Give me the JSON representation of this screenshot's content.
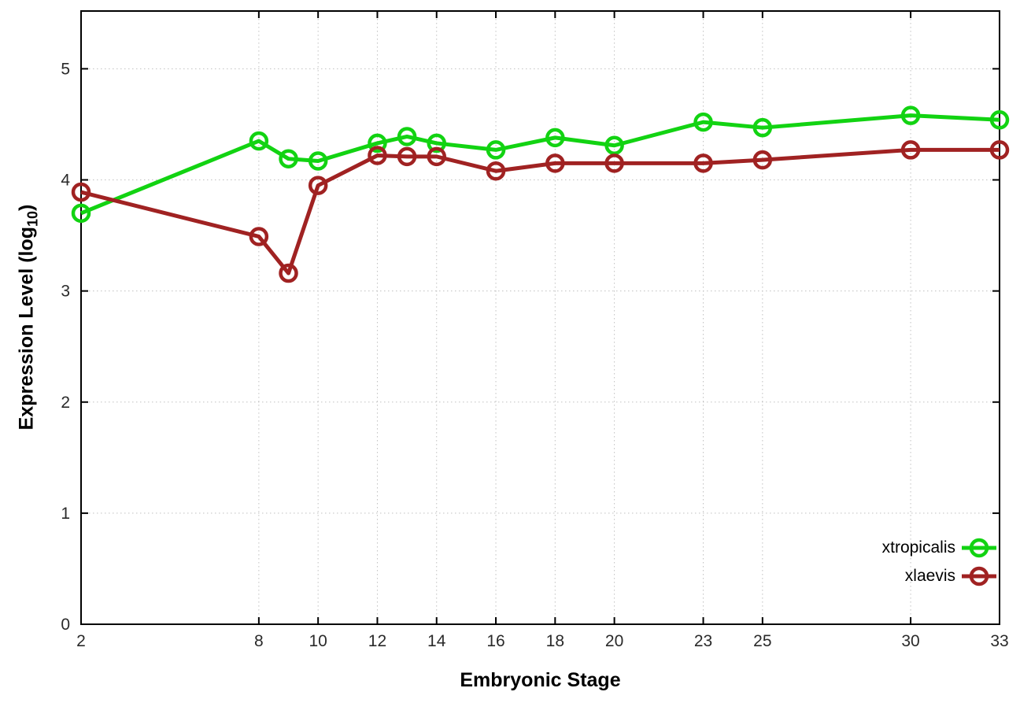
{
  "chart_data": {
    "type": "line",
    "title": "",
    "xlabel": "Embryonic Stage",
    "ylabel": "Expression Level (log10)",
    "ylabel_parts": {
      "base": "Expression Level (log",
      "sub": "10",
      "close": ")"
    },
    "x": [
      2,
      8,
      9,
      10,
      12,
      13,
      14,
      16,
      18,
      20,
      23,
      25,
      30,
      33
    ],
    "series": [
      {
        "name": "xtropicalis",
        "color": "#12d312",
        "values": [
          3.7,
          4.35,
          4.19,
          4.17,
          4.33,
          4.39,
          4.33,
          4.27,
          4.38,
          4.31,
          4.52,
          4.47,
          4.58,
          4.54
        ]
      },
      {
        "name": "xlaevis",
        "color": "#a02222",
        "values": [
          3.89,
          3.49,
          3.16,
          3.95,
          4.22,
          4.21,
          4.21,
          4.08,
          4.15,
          4.15,
          4.15,
          4.18,
          4.27,
          4.27
        ]
      }
    ],
    "x_ticks": [
      2,
      8,
      10,
      12,
      14,
      16,
      18,
      20,
      23,
      25,
      30,
      33
    ],
    "y_ticks": [
      0,
      1,
      2,
      3,
      4,
      5
    ],
    "xlim": [
      2,
      33
    ],
    "ylim": [
      0,
      5.52
    ],
    "grid": true,
    "legend_position": "inside-bottom-right",
    "marker": "open-circle",
    "colors": {
      "border": "#000000",
      "grid": "#c0c0c0",
      "tick_label": "#2a2a2a",
      "background": "#ffffff"
    }
  }
}
